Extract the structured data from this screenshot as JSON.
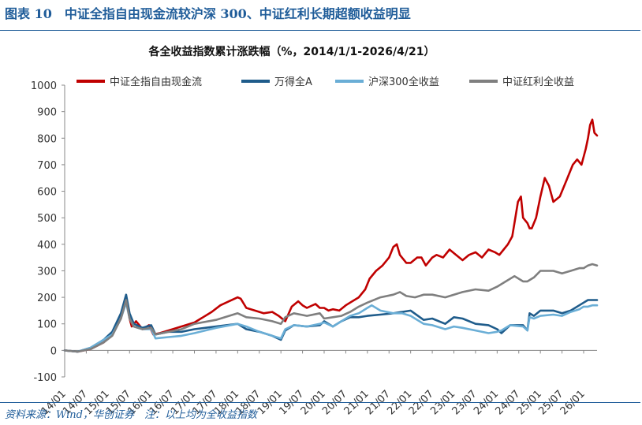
{
  "figure": {
    "caption": "图表 10　中证全指自由现金流较沪深 300、中证红利长期超额收益明显",
    "source": "资料来源：Wind，华创证券　注：以上均为全收益指数"
  },
  "chart_data": {
    "type": "line",
    "title": "各全收益指数累计涨跌幅（%，2014/1/1-2026/4/21）",
    "xlabel": "",
    "ylabel": "",
    "ylim": [
      -100,
      1000
    ],
    "yticks": [
      -100,
      0,
      100,
      200,
      300,
      400,
      500,
      600,
      700,
      800,
      900,
      1000
    ],
    "xlim": [
      2014.0,
      2026.31
    ],
    "xticks": [
      "14/01",
      "14/07",
      "15/01",
      "15/07",
      "16/01",
      "16/07",
      "17/01",
      "17/07",
      "18/01",
      "18/07",
      "19/01",
      "19/07",
      "20/01",
      "20/07",
      "21/01",
      "21/07",
      "22/01",
      "22/07",
      "23/01",
      "23/07",
      "24/01",
      "24/07",
      "25/01",
      "25/07",
      "26/01"
    ],
    "legend_position": "top",
    "grid": false,
    "series": [
      {
        "name": "中证全指自由现金流",
        "color": "#c00000",
        "x": [
          2014.0,
          2014.3,
          2014.6,
          2014.9,
          2015.1,
          2015.3,
          2015.42,
          2015.5,
          2015.55,
          2015.65,
          2015.7,
          2015.8,
          2015.95,
          2016.05,
          2016.2,
          2016.4,
          2016.6,
          2016.8,
          2017.0,
          2017.2,
          2017.4,
          2017.6,
          2017.8,
          2018.0,
          2018.07,
          2018.2,
          2018.4,
          2018.6,
          2018.8,
          2018.95,
          2019.1,
          2019.25,
          2019.4,
          2019.5,
          2019.6,
          2019.8,
          2019.9,
          2020.0,
          2020.1,
          2020.2,
          2020.35,
          2020.5,
          2020.6,
          2020.8,
          2020.95,
          2021.05,
          2021.2,
          2021.35,
          2021.5,
          2021.6,
          2021.68,
          2021.75,
          2021.9,
          2022.0,
          2022.15,
          2022.25,
          2022.35,
          2022.5,
          2022.6,
          2022.75,
          2022.9,
          2023.05,
          2023.2,
          2023.35,
          2023.5,
          2023.65,
          2023.8,
          2023.95,
          2024.05,
          2024.15,
          2024.25,
          2024.35,
          2024.42,
          2024.48,
          2024.55,
          2024.6,
          2024.7,
          2024.75,
          2024.8,
          2024.9,
          2025.0,
          2025.1,
          2025.2,
          2025.3,
          2025.45,
          2025.6,
          2025.75,
          2025.85,
          2025.95,
          2026.05,
          2026.1,
          2026.15,
          2026.2,
          2026.25,
          2026.31
        ],
        "y": [
          0,
          -5,
          5,
          30,
          60,
          120,
          200,
          120,
          90,
          110,
          100,
          80,
          95,
          60,
          65,
          75,
          85,
          95,
          105,
          125,
          145,
          170,
          185,
          200,
          195,
          160,
          150,
          140,
          145,
          130,
          110,
          165,
          185,
          170,
          160,
          175,
          160,
          160,
          150,
          155,
          150,
          170,
          180,
          200,
          230,
          270,
          300,
          320,
          350,
          390,
          400,
          360,
          330,
          330,
          350,
          350,
          320,
          350,
          360,
          350,
          380,
          360,
          340,
          360,
          370,
          350,
          380,
          370,
          360,
          380,
          400,
          430,
          500,
          560,
          580,
          500,
          480,
          460,
          460,
          500,
          580,
          650,
          620,
          560,
          580,
          640,
          700,
          720,
          700,
          760,
          800,
          850,
          870,
          820,
          810
        ]
      },
      {
        "name": "万得全A",
        "color": "#1f5c8b",
        "x": [
          2014.0,
          2014.3,
          2014.6,
          2014.9,
          2015.1,
          2015.3,
          2015.42,
          2015.5,
          2015.6,
          2015.8,
          2016.0,
          2016.1,
          2016.4,
          2016.7,
          2017.0,
          2017.5,
          2018.0,
          2018.2,
          2018.5,
          2018.8,
          2019.0,
          2019.1,
          2019.3,
          2019.6,
          2019.9,
          2020.0,
          2020.2,
          2020.4,
          2020.6,
          2020.8,
          2021.0,
          2021.3,
          2021.6,
          2021.8,
          2022.0,
          2022.3,
          2022.5,
          2022.8,
          2023.0,
          2023.2,
          2023.5,
          2023.8,
          2024.0,
          2024.1,
          2024.3,
          2024.6,
          2024.7,
          2024.75,
          2024.85,
          2025.0,
          2025.3,
          2025.5,
          2025.7,
          2025.9,
          2026.0,
          2026.1,
          2026.2,
          2026.31
        ],
        "y": [
          0,
          -5,
          10,
          40,
          70,
          140,
          210,
          140,
          100,
          85,
          95,
          60,
          70,
          70,
          80,
          90,
          100,
          80,
          70,
          55,
          40,
          75,
          95,
          90,
          95,
          110,
          90,
          110,
          125,
          125,
          130,
          135,
          140,
          145,
          150,
          115,
          120,
          100,
          125,
          120,
          100,
          95,
          80,
          65,
          95,
          95,
          75,
          140,
          130,
          150,
          150,
          140,
          150,
          170,
          180,
          190,
          190,
          190
        ]
      },
      {
        "name": "沪深300全收益",
        "color": "#6aaed6",
        "x": [
          2014.0,
          2014.3,
          2014.6,
          2014.9,
          2015.1,
          2015.3,
          2015.42,
          2015.5,
          2015.6,
          2015.8,
          2016.0,
          2016.1,
          2016.4,
          2016.7,
          2017.0,
          2017.5,
          2018.0,
          2018.2,
          2018.5,
          2018.8,
          2019.0,
          2019.1,
          2019.3,
          2019.6,
          2019.9,
          2020.0,
          2020.2,
          2020.4,
          2020.6,
          2020.8,
          2021.0,
          2021.1,
          2021.3,
          2021.6,
          2021.8,
          2022.0,
          2022.3,
          2022.5,
          2022.8,
          2023.0,
          2023.2,
          2023.5,
          2023.8,
          2024.0,
          2024.1,
          2024.3,
          2024.6,
          2024.7,
          2024.75,
          2024.85,
          2025.0,
          2025.3,
          2025.5,
          2025.7,
          2025.9,
          2026.0,
          2026.1,
          2026.2,
          2026.31
        ],
        "y": [
          0,
          -5,
          10,
          40,
          60,
          120,
          180,
          120,
          90,
          80,
          80,
          45,
          50,
          55,
          65,
          85,
          100,
          90,
          70,
          55,
          45,
          80,
          95,
          90,
          100,
          105,
          90,
          110,
          130,
          140,
          160,
          170,
          150,
          140,
          140,
          130,
          100,
          95,
          80,
          90,
          85,
          75,
          65,
          70,
          75,
          95,
          90,
          75,
          125,
          120,
          130,
          135,
          130,
          145,
          155,
          165,
          165,
          170,
          170
        ]
      },
      {
        "name": "中证红利全收益",
        "color": "#7f7f7f",
        "x": [
          2014.0,
          2014.3,
          2014.6,
          2014.9,
          2015.1,
          2015.3,
          2015.42,
          2015.5,
          2015.6,
          2015.8,
          2016.0,
          2016.1,
          2016.4,
          2016.7,
          2017.0,
          2017.5,
          2018.0,
          2018.2,
          2018.5,
          2018.8,
          2019.0,
          2019.1,
          2019.3,
          2019.6,
          2019.9,
          2020.0,
          2020.2,
          2020.4,
          2020.6,
          2020.8,
          2021.0,
          2021.3,
          2021.6,
          2021.75,
          2021.9,
          2022.1,
          2022.3,
          2022.5,
          2022.8,
          2023.0,
          2023.2,
          2023.5,
          2023.8,
          2024.0,
          2024.2,
          2024.4,
          2024.6,
          2024.7,
          2024.85,
          2025.0,
          2025.3,
          2025.5,
          2025.7,
          2025.9,
          2026.0,
          2026.1,
          2026.2,
          2026.31
        ],
        "y": [
          0,
          -5,
          5,
          30,
          55,
          120,
          190,
          120,
          90,
          80,
          85,
          60,
          70,
          80,
          100,
          115,
          140,
          125,
          120,
          110,
          100,
          125,
          140,
          130,
          140,
          120,
          125,
          130,
          145,
          165,
          180,
          200,
          210,
          220,
          205,
          200,
          210,
          210,
          200,
          210,
          220,
          230,
          225,
          240,
          260,
          280,
          260,
          260,
          275,
          300,
          300,
          290,
          300,
          310,
          310,
          320,
          325,
          320
        ]
      }
    ]
  }
}
